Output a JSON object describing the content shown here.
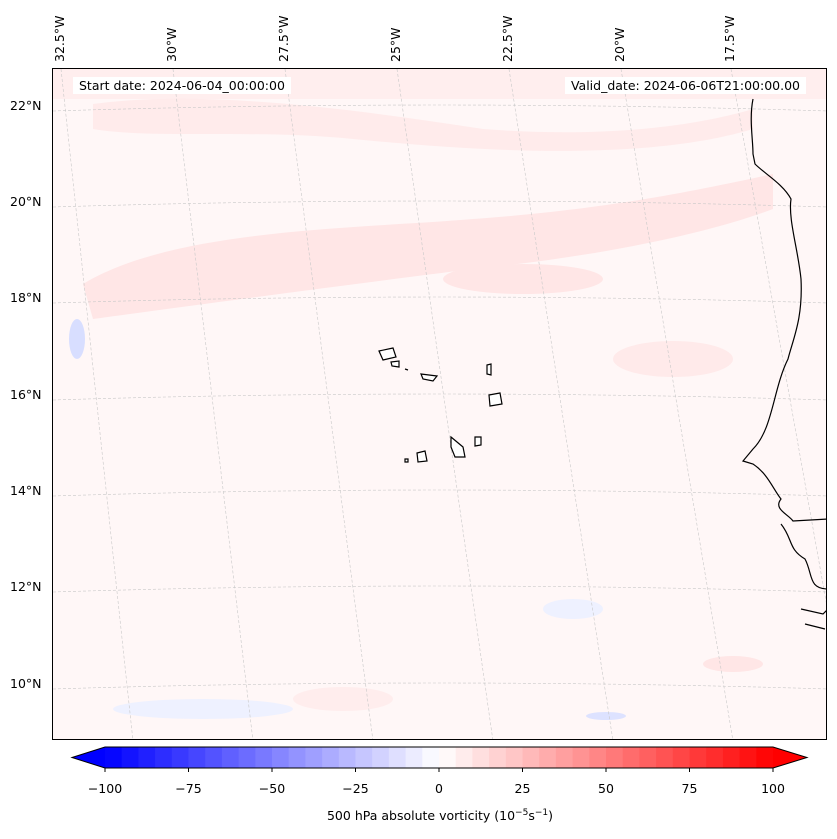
{
  "map": {
    "start_date": "Start date: 2024-06-04_00:00:00",
    "valid_date": "Valid_date: 2024-06-06T21:00:00.00",
    "lon_labels": [
      "32.5°W",
      "30°W",
      "27.5°W",
      "25°W",
      "22.5°W",
      "20°W",
      "17.5°W"
    ],
    "lat_labels": [
      "22°N",
      "20°N",
      "18°N",
      "16°N",
      "14°N",
      "12°N",
      "10°N"
    ]
  },
  "colorbar": {
    "label_prefix": "500 hPa absolute vorticity (10",
    "label_exp1": "−5",
    "label_mid": "s",
    "label_exp2": "−1",
    "label_suffix": ")",
    "ticks": [
      "−100",
      "−75",
      "−50",
      "−25",
      "0",
      "25",
      "50",
      "75",
      "100"
    ],
    "min": -100,
    "max": 100,
    "step": 5,
    "colors": {
      "low": "#0000ff",
      "mid": "#ffffff",
      "high": "#ff0000"
    }
  }
}
